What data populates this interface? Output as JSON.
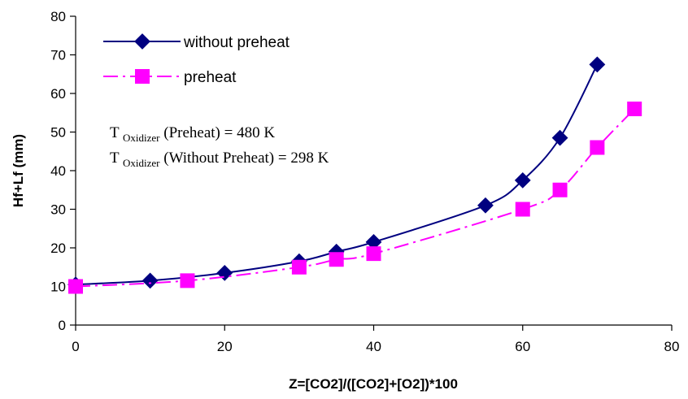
{
  "chart_data": {
    "type": "line",
    "xlabel": "Z=[CO2]/([CO2]+[O2])*100",
    "ylabel": "Hf+Lf (mm)",
    "xlim": [
      0,
      80
    ],
    "ylim": [
      0,
      80
    ],
    "xticks": [
      0,
      20,
      40,
      60,
      80
    ],
    "yticks": [
      0,
      10,
      20,
      30,
      40,
      50,
      60,
      70,
      80
    ],
    "grid": false,
    "legend_position": "top-left",
    "series": [
      {
        "name": "without preheat",
        "color": "#000080",
        "marker": "diamond",
        "line": "solid",
        "x": [
          0,
          10,
          20,
          30,
          35,
          40,
          55,
          60,
          65,
          70
        ],
        "y": [
          10.5,
          11.5,
          13.5,
          16.5,
          19,
          21.5,
          31,
          37.5,
          48.5,
          67.5
        ]
      },
      {
        "name": "preheat",
        "color": "#FF00FF",
        "marker": "square",
        "line": "dash-dot",
        "x": [
          0,
          15,
          30,
          35,
          40,
          60,
          65,
          70,
          75
        ],
        "y": [
          10,
          11.5,
          15,
          17,
          18.5,
          30,
          35,
          46,
          56
        ]
      }
    ],
    "annotations": [
      {
        "prefix": "T",
        "sub": "Oxidizer",
        "rest": "(Preheat) = 480 K"
      },
      {
        "prefix": "T",
        "sub": "Oxidizer",
        "rest": "(Without Preheat) = 298 K"
      }
    ]
  }
}
